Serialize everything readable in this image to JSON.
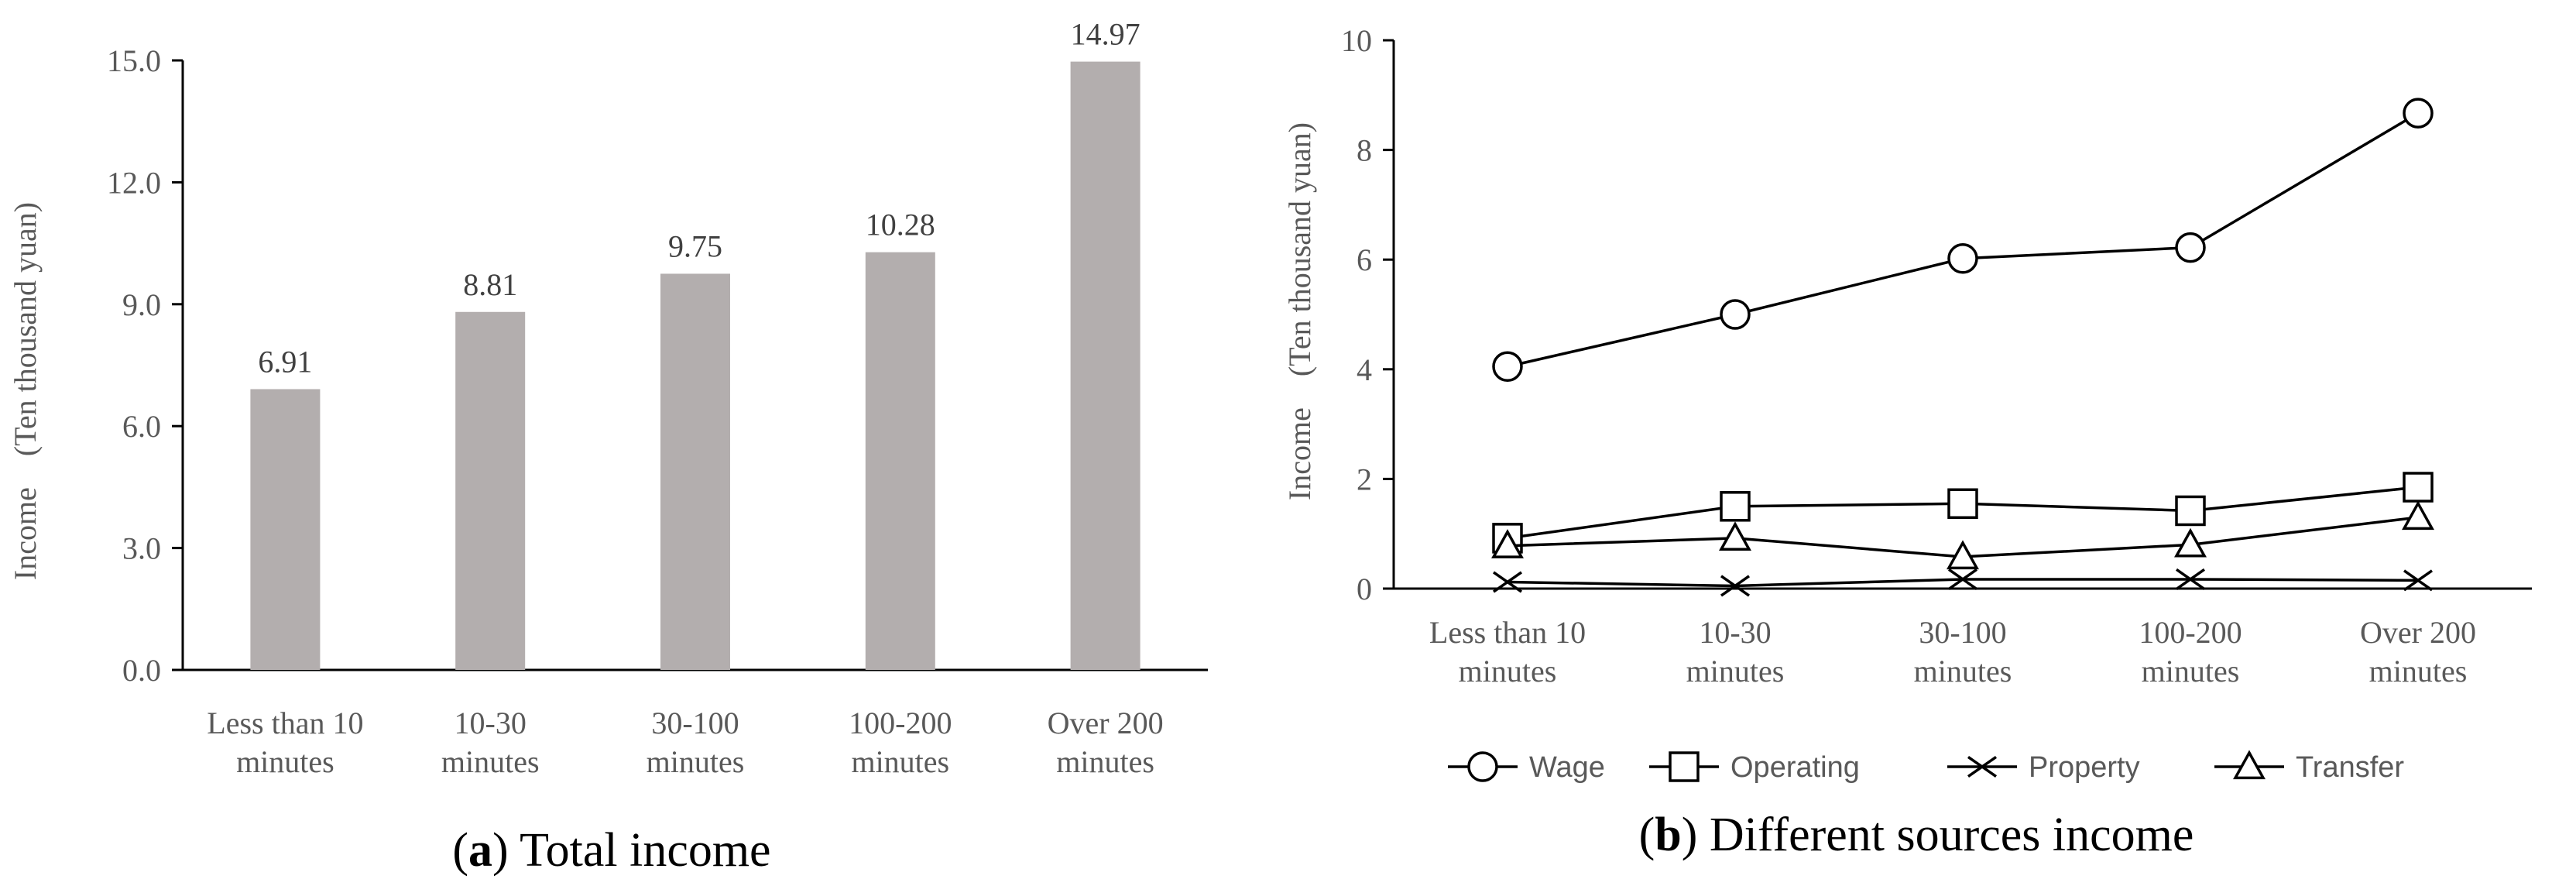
{
  "chart_data": [
    {
      "type": "bar",
      "title": "Total income",
      "panel_label": "a",
      "ylabel": "Income　(Ten thousand yuan)",
      "ylim": [
        0,
        15
      ],
      "yticks": [
        "0.0",
        "3.0",
        "6.0",
        "9.0",
        "12.0",
        "15.0"
      ],
      "categories": [
        [
          "Less than 10",
          "minutes"
        ],
        [
          "10-30",
          "minutes"
        ],
        [
          "30-100",
          "minutes"
        ],
        [
          "100-200",
          "minutes"
        ],
        [
          "Over 200",
          "minutes"
        ]
      ],
      "values": [
        6.91,
        8.81,
        9.75,
        10.28,
        14.97
      ],
      "value_labels": [
        "6.91",
        "8.81",
        "9.75",
        "10.28",
        "14.97"
      ],
      "bar_color": "#b3aeae"
    },
    {
      "type": "line",
      "title": "Different sources income",
      "panel_label": "b",
      "ylabel": "Income　(Ten thousand yuan)",
      "ylim": [
        0,
        10
      ],
      "yticks": [
        "0",
        "2",
        "4",
        "6",
        "8",
        "10"
      ],
      "categories": [
        [
          "Less than 10",
          "minutes"
        ],
        [
          "10-30",
          "minutes"
        ],
        [
          "30-100",
          "minutes"
        ],
        [
          "100-200",
          "minutes"
        ],
        [
          "Over 200",
          "minutes"
        ]
      ],
      "series": [
        {
          "name": "Wage",
          "marker": "circle",
          "values": [
            4.05,
            5.0,
            6.02,
            6.22,
            8.67
          ]
        },
        {
          "name": "Operating",
          "marker": "square",
          "values": [
            0.92,
            1.5,
            1.55,
            1.42,
            1.85
          ]
        },
        {
          "name": "Property",
          "marker": "x",
          "values": [
            0.12,
            0.05,
            0.17,
            0.17,
            0.15
          ]
        },
        {
          "name": "Transfer",
          "marker": "triangle",
          "values": [
            0.78,
            0.92,
            0.58,
            0.8,
            1.3
          ]
        }
      ],
      "legend_position": "bottom",
      "line_color": "#000000"
    }
  ]
}
